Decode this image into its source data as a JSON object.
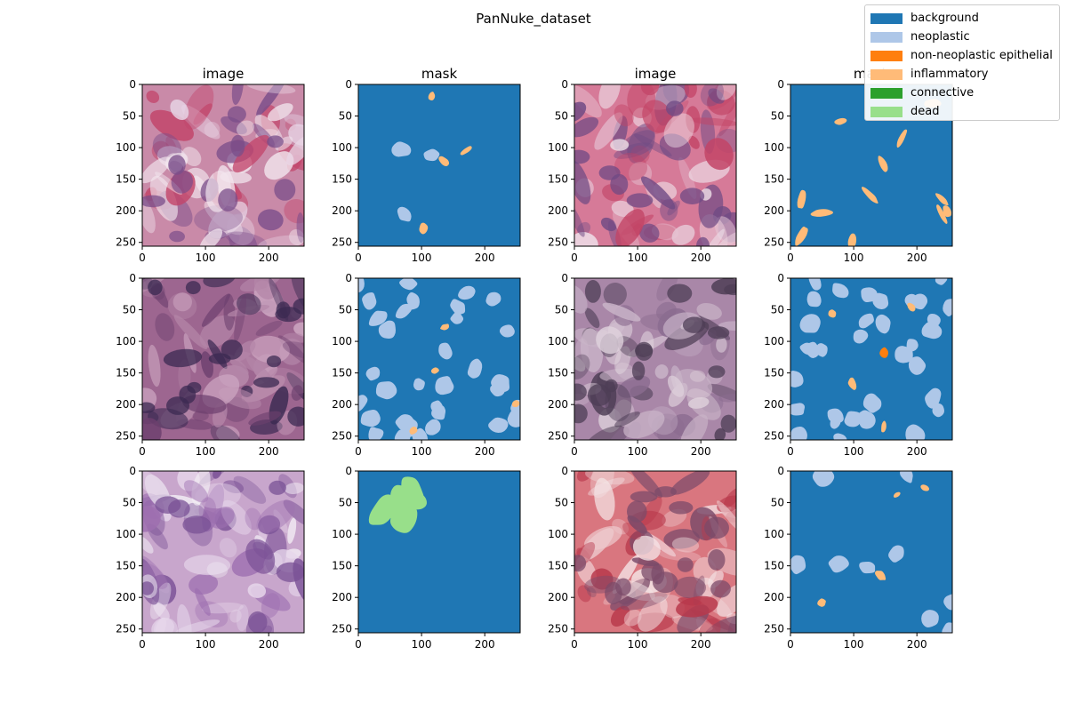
{
  "title": "PanNuke_dataset",
  "legend": {
    "items": [
      {
        "label": "background",
        "color": "#1f77b4"
      },
      {
        "label": "neoplastic",
        "color": "#aec7e8"
      },
      {
        "label": "non-neoplastic epithelial",
        "color": "#ff7f0e"
      },
      {
        "label": "inflammatory",
        "color": "#ffbb78"
      },
      {
        "label": "connective",
        "color": "#2ca02c"
      },
      {
        "label": "dead",
        "color": "#98df8a"
      }
    ]
  },
  "chart_data": {
    "type": "image-grid",
    "rows": 3,
    "cols": 4,
    "xlim": [
      0,
      256
    ],
    "ylim": [
      256,
      0
    ],
    "xticks": [
      0,
      100,
      200
    ],
    "yticks": [
      0,
      50,
      100,
      150,
      200,
      250
    ],
    "panels": [
      {
        "title": "image",
        "kind": "image",
        "palette": [
          "#c98aa8",
          "#c2456a",
          "#e8d5e6",
          "#7a4d8a",
          "#f2e6ee"
        ]
      },
      {
        "title": "mask",
        "kind": "mask",
        "classes_present": [
          "background",
          "neoplastic",
          "inflammatory"
        ]
      },
      {
        "title": "image",
        "kind": "image",
        "palette": [
          "#d67a98",
          "#c24466",
          "#e6c7d6",
          "#6f4a84",
          "#efe2ea"
        ]
      },
      {
        "title": "mask",
        "kind": "mask",
        "classes_present": [
          "background",
          "inflammatory"
        ]
      },
      {
        "title": "",
        "kind": "image",
        "palette": [
          "#9d6690",
          "#6c3f6e",
          "#b486a8",
          "#3b2a52",
          "#cfa8c3"
        ]
      },
      {
        "title": "",
        "kind": "mask",
        "classes_present": [
          "background",
          "neoplastic",
          "inflammatory"
        ]
      },
      {
        "title": "",
        "kind": "image",
        "palette": [
          "#a987a8",
          "#8b6c90",
          "#c9b4c8",
          "#4d3d55",
          "#e0d3dd"
        ]
      },
      {
        "title": "",
        "kind": "mask",
        "classes_present": [
          "background",
          "neoplastic",
          "non-neoplastic epithelial",
          "inflammatory"
        ]
      },
      {
        "title": "",
        "kind": "image",
        "palette": [
          "#c8a6cc",
          "#9d6fb0",
          "#e6d6ea",
          "#7a5196",
          "#f3eef5"
        ]
      },
      {
        "title": "",
        "kind": "mask",
        "classes_present": [
          "background",
          "dead"
        ]
      },
      {
        "title": "",
        "kind": "image",
        "palette": [
          "#d9767f",
          "#b8384b",
          "#edc8cc",
          "#7b4b6a",
          "#f4e4e6"
        ]
      },
      {
        "title": "",
        "kind": "mask",
        "classes_present": [
          "background",
          "neoplastic",
          "inflammatory"
        ]
      }
    ]
  }
}
